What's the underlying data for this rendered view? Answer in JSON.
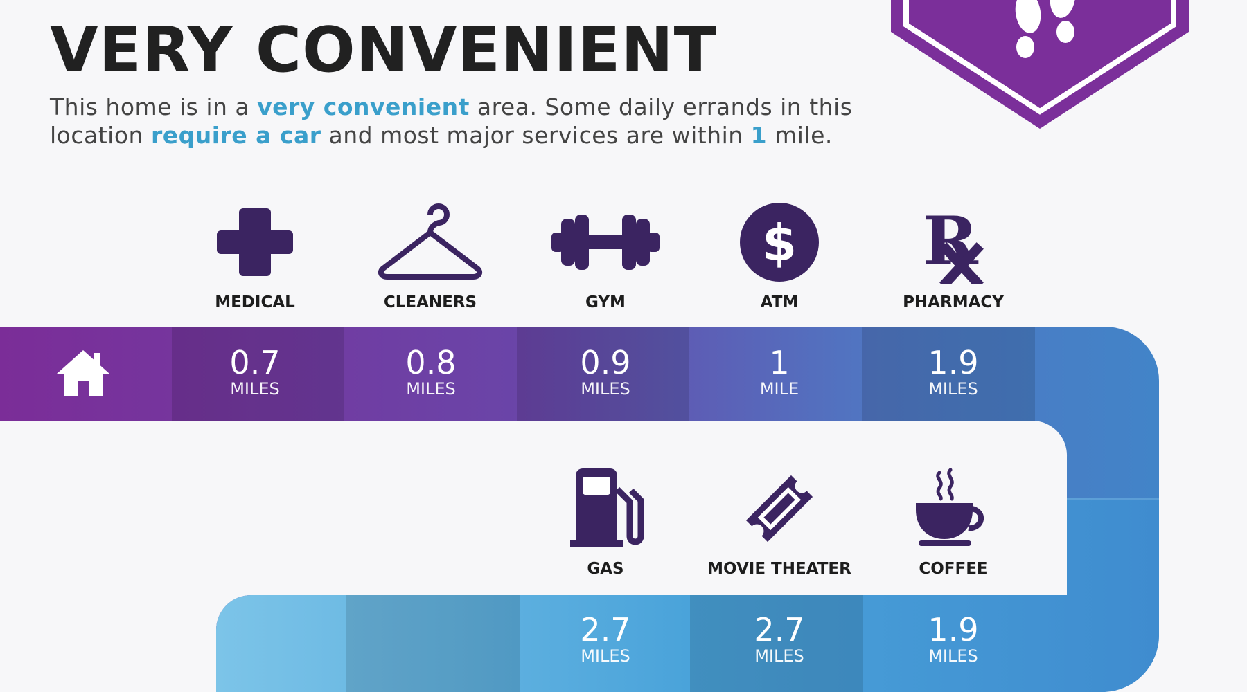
{
  "title": "VERY CONVENIENT",
  "description": {
    "p1": "This home is in a ",
    "h1": "very convenient",
    "p2": " area. Some daily errands in this location ",
    "h2": "require a car",
    "p3": " and most major services are within ",
    "h3": "1",
    "p4": " mile."
  },
  "colors": {
    "accent_purple": "#7b3a97",
    "accent_blue": "#3a9fcb",
    "icon_dark": "#3b2461"
  },
  "row1": [
    {
      "label": "MEDICAL",
      "icon": "medical-cross-icon",
      "value": "0.7",
      "unit": "MILES"
    },
    {
      "label": "CLEANERS",
      "icon": "hanger-icon",
      "value": "0.8",
      "unit": "MILES"
    },
    {
      "label": "GYM",
      "icon": "dumbbell-icon",
      "value": "0.9",
      "unit": "MILES"
    },
    {
      "label": "ATM",
      "icon": "dollar-coin-icon",
      "value": "1",
      "unit": "MILE"
    },
    {
      "label": "PHARMACY",
      "icon": "rx-icon",
      "value": "1.9",
      "unit": "MILES"
    }
  ],
  "row2": [
    {
      "label": "GAS",
      "icon": "gas-pump-icon",
      "value": "2.7",
      "unit": "MILES"
    },
    {
      "label": "MOVIE THEATER",
      "icon": "ticket-icon",
      "value": "2.7",
      "unit": "MILES"
    },
    {
      "label": "COFFEE",
      "icon": "coffee-cup-icon",
      "value": "1.9",
      "unit": "MILES"
    }
  ],
  "badge_icon": "footprints-icon",
  "home_icon": "house-icon"
}
